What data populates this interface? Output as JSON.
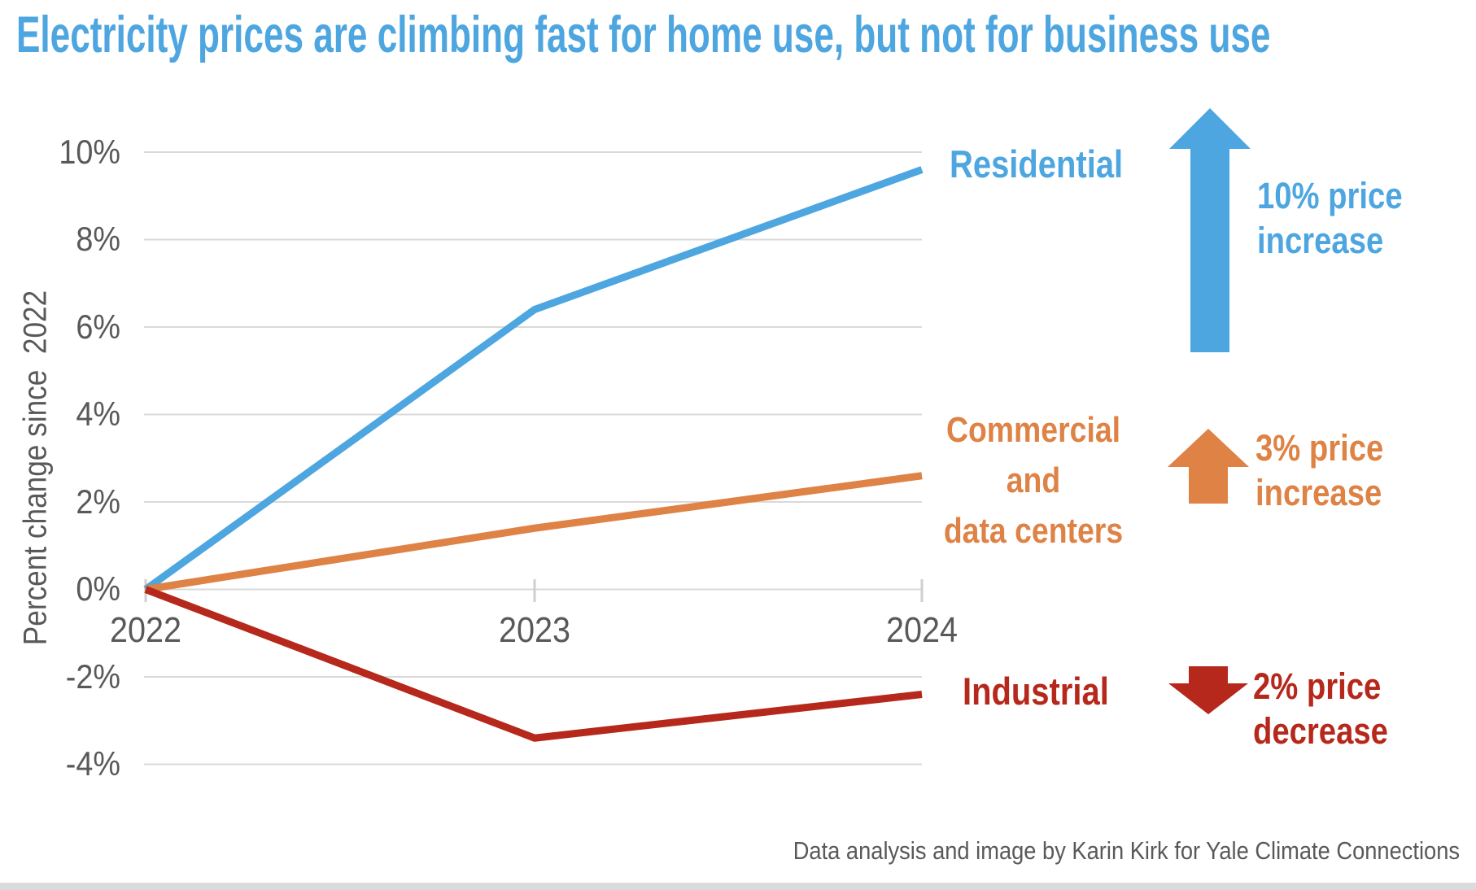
{
  "title": {
    "text": "Electricity prices are climbing fast for home use, but not for business use"
  },
  "colors": {
    "blue": "#4DA6E0",
    "orange": "#DE8245",
    "red": "#B5281B",
    "axis_text": "#595959",
    "grid": "#D9D9D9",
    "tick": "#CFCFCF",
    "footer_text": "#595959",
    "bottom_strip": "#DBDBDB"
  },
  "chart_data": {
    "type": "line",
    "x": [
      2022,
      2023,
      2024
    ],
    "x_labels": [
      "2022",
      "2023",
      "2024"
    ],
    "ylabel": "Percent change since  2022",
    "yticks": [
      10,
      8,
      6,
      4,
      2,
      0,
      -2,
      -4
    ],
    "ytick_labels": [
      "10%",
      "8%",
      "6%",
      "4%",
      "2%",
      "0%",
      "-2%",
      "-4%"
    ],
    "ylim": [
      -4,
      10
    ],
    "grid": true,
    "legend_position": "labels-right-of-lines",
    "series": [
      {
        "name": "Residential",
        "color": "#4DA6E0",
        "values": [
          0,
          6.4,
          9.6
        ]
      },
      {
        "name": "Commercial and data centers",
        "color": "#DE8245",
        "values": [
          0,
          1.4,
          2.6
        ]
      },
      {
        "name": "Industrial",
        "color": "#B5281B",
        "values": [
          0,
          -3.4,
          -2.4
        ]
      }
    ]
  },
  "series_labels": {
    "residential": "Residential",
    "commercial_line1": "Commercial",
    "commercial_line2": "and",
    "commercial_line3": "data centers",
    "industrial": "Industrial"
  },
  "annotations": [
    {
      "text_line1": "10% price",
      "text_line2": "increase",
      "direction": "up",
      "color": "#4DA6E0"
    },
    {
      "text_line1": "3% price",
      "text_line2": "increase",
      "direction": "up",
      "color": "#DE8245"
    },
    {
      "text_line1": "2% price",
      "text_line2": "decrease",
      "direction": "down",
      "color": "#B5281B"
    }
  ],
  "footer": {
    "credit": "Data analysis and image by Karin Kirk for Yale Climate Connections"
  }
}
